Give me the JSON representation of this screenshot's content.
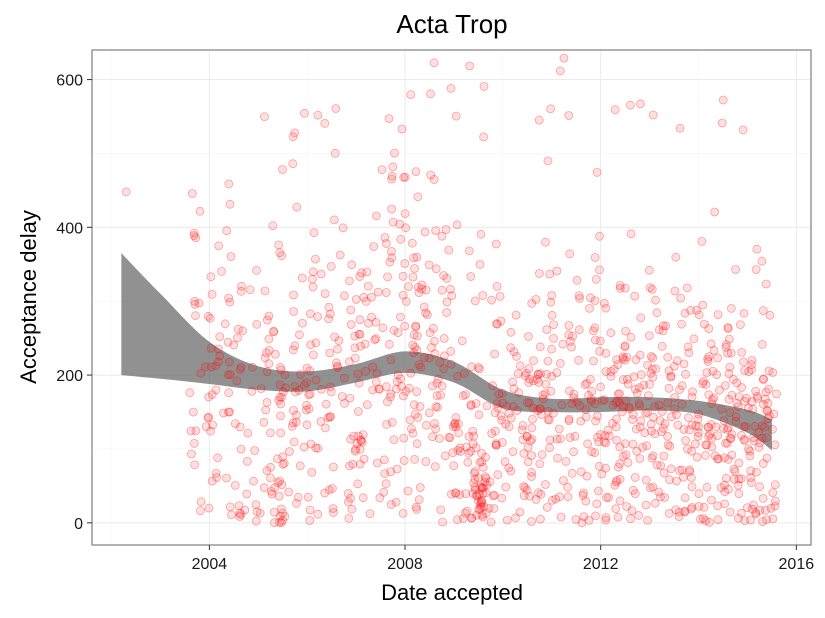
{
  "chart_data": {
    "type": "scatter",
    "title": "Acta Trop",
    "xlabel": "Date accepted",
    "ylabel": "Acceptance delay",
    "x_ticks": [
      "2004",
      "2008",
      "2012",
      "2016"
    ],
    "y_ticks": [
      "0",
      "200",
      "400",
      "600"
    ],
    "xlim": [
      2001.6,
      2016.3
    ],
    "ylim": [
      -30,
      640
    ],
    "grid": true,
    "point_color": "#ff0000",
    "band_color": "#666666",
    "smooth_band": {
      "x": [
        2002.2,
        2003.0,
        2004.0,
        2005.0,
        2006.0,
        2007.0,
        2008.0,
        2009.0,
        2010.0,
        2011.0,
        2012.0,
        2013.0,
        2014.0,
        2015.0,
        2015.5
      ],
      "upper": [
        365,
        310,
        245,
        212,
        205,
        215,
        232,
        218,
        180,
        168,
        170,
        170,
        165,
        153,
        140
      ],
      "lower": [
        200,
        195,
        188,
        180,
        178,
        190,
        203,
        190,
        155,
        150,
        150,
        152,
        147,
        122,
        98
      ]
    },
    "points": {
      "seed": 20240517,
      "clusters": [
        {
          "x_min": 2002.2,
          "x_max": 2002.4,
          "n": 1,
          "mean": 448,
          "sd": 0
        },
        {
          "x_min": 2003.6,
          "x_max": 2004.6,
          "n": 70,
          "mean": 190,
          "sd": 120
        },
        {
          "x_min": 2004.6,
          "x_max": 2006.0,
          "n": 105,
          "mean": 170,
          "sd": 110
        },
        {
          "x_min": 2005.3,
          "x_max": 2005.5,
          "n": 10,
          "mean": 25,
          "sd": 15
        },
        {
          "x_min": 2006.0,
          "x_max": 2007.6,
          "n": 130,
          "mean": 200,
          "sd": 115
        },
        {
          "x_min": 2007.6,
          "x_max": 2008.9,
          "n": 140,
          "mean": 240,
          "sd": 135
        },
        {
          "x_min": 2008.9,
          "x_max": 2010.2,
          "n": 120,
          "mean": 130,
          "sd": 110
        },
        {
          "x_min": 2009.4,
          "x_max": 2009.7,
          "n": 20,
          "mean": 45,
          "sd": 20
        },
        {
          "x_min": 2010.2,
          "x_max": 2012.0,
          "n": 175,
          "mean": 150,
          "sd": 105
        },
        {
          "x_min": 2012.0,
          "x_max": 2013.8,
          "n": 190,
          "mean": 145,
          "sd": 105
        },
        {
          "x_min": 2013.8,
          "x_max": 2015.6,
          "n": 210,
          "mean": 140,
          "sd": 95
        },
        {
          "x_min": 2005.0,
          "x_max": 2015.0,
          "n": 30,
          "mean": 560,
          "sd": 45
        }
      ]
    }
  }
}
